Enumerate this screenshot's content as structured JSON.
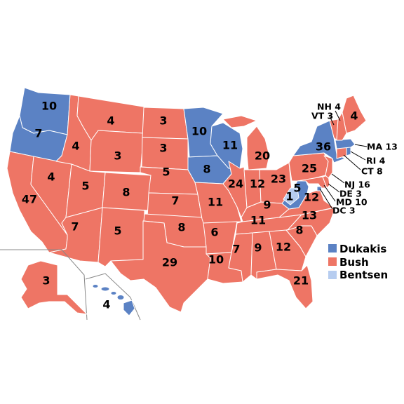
{
  "legend": [
    {
      "label": "Dukakis",
      "color": "#5b82c4"
    },
    {
      "label": "Bush",
      "color": "#ee7565"
    },
    {
      "label": "Bentsen",
      "color": "#b7cdf0"
    }
  ],
  "colors": {
    "dukakis": "#5b82c4",
    "bush": "#ee7565",
    "bentsen": "#b7cdf0",
    "border": "#ffffff"
  },
  "states": {
    "WA": {
      "winner": "dukakis",
      "votes": "10"
    },
    "OR": {
      "winner": "dukakis",
      "votes": "7"
    },
    "CA": {
      "winner": "bush",
      "votes": "47"
    },
    "NV": {
      "winner": "bush",
      "votes": "4"
    },
    "ID": {
      "winner": "bush",
      "votes": "4"
    },
    "MT": {
      "winner": "bush",
      "votes": "4"
    },
    "WY": {
      "winner": "bush",
      "votes": "3"
    },
    "UT": {
      "winner": "bush",
      "votes": "5"
    },
    "CO": {
      "winner": "bush",
      "votes": "8"
    },
    "AZ": {
      "winner": "bush",
      "votes": "7"
    },
    "NM": {
      "winner": "bush",
      "votes": "5"
    },
    "ND": {
      "winner": "bush",
      "votes": "3"
    },
    "SD": {
      "winner": "bush",
      "votes": "3"
    },
    "NE": {
      "winner": "bush",
      "votes": "5"
    },
    "KS": {
      "winner": "bush",
      "votes": "7"
    },
    "OK": {
      "winner": "bush",
      "votes": "8"
    },
    "TX": {
      "winner": "bush",
      "votes": "29"
    },
    "MN": {
      "winner": "dukakis",
      "votes": "10"
    },
    "IA": {
      "winner": "dukakis",
      "votes": "8"
    },
    "MO": {
      "winner": "bush",
      "votes": "11"
    },
    "AR": {
      "winner": "bush",
      "votes": "6"
    },
    "LA": {
      "winner": "bush",
      "votes": "10"
    },
    "WI": {
      "winner": "dukakis",
      "votes": "11"
    },
    "IL": {
      "winner": "bush",
      "votes": "24"
    },
    "MI": {
      "winner": "bush",
      "votes": "20"
    },
    "IN": {
      "winner": "bush",
      "votes": "12"
    },
    "OH": {
      "winner": "bush",
      "votes": "23"
    },
    "KY": {
      "winner": "bush",
      "votes": "9"
    },
    "TN": {
      "winner": "bush",
      "votes": "11"
    },
    "MS": {
      "winner": "bush",
      "votes": "7"
    },
    "AL": {
      "winner": "bush",
      "votes": "9"
    },
    "GA": {
      "winner": "bush",
      "votes": "12"
    },
    "FL": {
      "winner": "bush",
      "votes": "21"
    },
    "SC": {
      "winner": "bush",
      "votes": "8"
    },
    "NC": {
      "winner": "bush",
      "votes": "13"
    },
    "VA": {
      "winner": "bush",
      "votes": "12"
    },
    "WV": {
      "winner": "dukakis",
      "votes": "5"
    },
    "WV_faithless": {
      "winner": "bentsen",
      "votes": "1"
    },
    "PA": {
      "winner": "bush",
      "votes": "25"
    },
    "NY": {
      "winner": "dukakis",
      "votes": "36"
    },
    "ME": {
      "winner": "bush",
      "votes": "4"
    },
    "NH": {
      "winner": "bush",
      "votes": "NH 4"
    },
    "VT": {
      "winner": "bush",
      "votes": "VT 3"
    },
    "MA": {
      "winner": "dukakis",
      "votes": "MA 13"
    },
    "RI": {
      "winner": "dukakis",
      "votes": "RI 4"
    },
    "CT": {
      "winner": "bush",
      "votes": "CT 8"
    },
    "NJ": {
      "winner": "bush",
      "votes": "NJ 16"
    },
    "DE": {
      "winner": "bush",
      "votes": "DE 3"
    },
    "MD": {
      "winner": "bush",
      "votes": "MD 10"
    },
    "DC": {
      "winner": "dukakis",
      "votes": "DC 3"
    },
    "AK": {
      "winner": "bush",
      "votes": "3"
    },
    "HI": {
      "winner": "dukakis",
      "votes": "4"
    }
  }
}
